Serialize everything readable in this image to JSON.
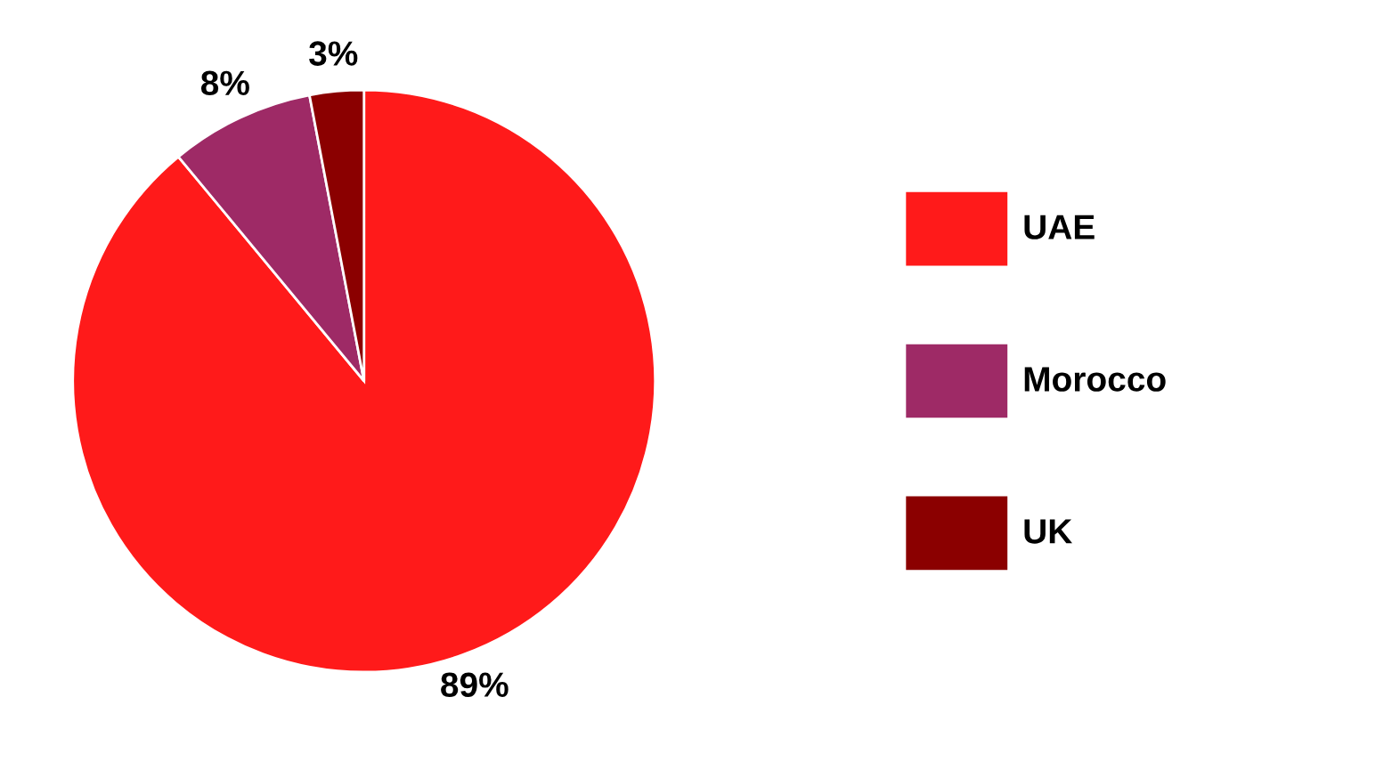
{
  "chart_data": {
    "type": "pie",
    "categories": [
      "UAE",
      "Morocco",
      "UK"
    ],
    "values": [
      89,
      8,
      3
    ],
    "colors": [
      "#ff1a1a",
      "#9e2a66",
      "#8b0000"
    ],
    "value_labels": [
      "89%",
      "8%",
      "3%"
    ],
    "legend": "right"
  }
}
